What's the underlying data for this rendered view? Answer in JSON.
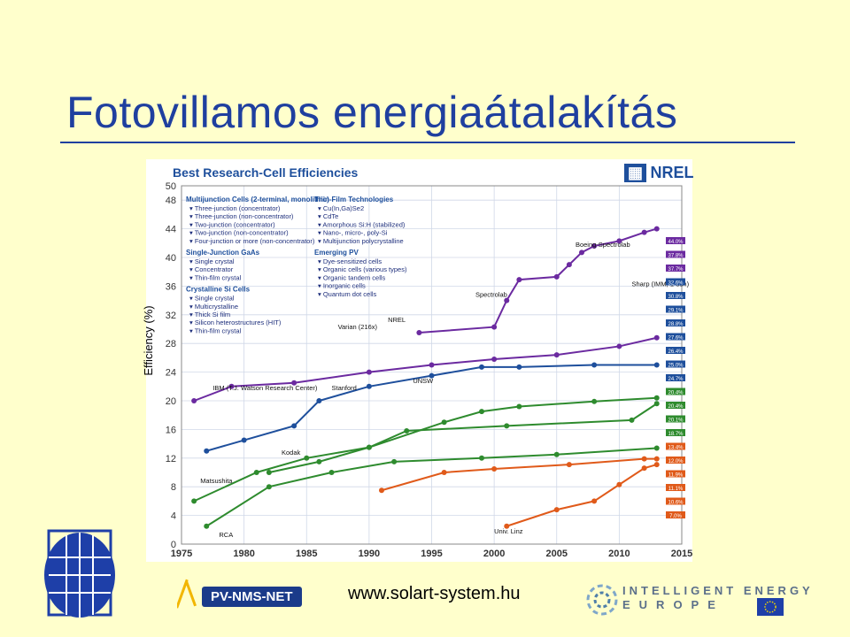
{
  "slide": {
    "title": "Fotovillamos energiaátalakítás",
    "footer_url": "www.solart-system.hu",
    "intelligent_energy_line1": "INTELLIGENT ENERGY",
    "intelligent_energy_line2": "EUROPE",
    "pv_logo_text": "PV-NMS-NET",
    "nrel_logo_text": "NREL",
    "colors": {
      "background": "#ffffcc",
      "title": "#1f3f9f",
      "nrel_blue": "#1e4f9c"
    }
  },
  "chart_data": {
    "type": "scatter",
    "title": "Best Research-Cell Efficiencies",
    "ylabel": "Efficiency (%)",
    "xlim": [
      1975,
      2015
    ],
    "ylim": [
      0,
      50
    ],
    "xticks": [
      "1975",
      "1980",
      "1985",
      "1990",
      "1995",
      "2000",
      "2005",
      "2010",
      "2015"
    ],
    "yticks": [
      "0",
      "4",
      "8",
      "12",
      "16",
      "20",
      "24",
      "28",
      "32",
      "36",
      "40",
      "44",
      "48",
      "50"
    ],
    "legend_groups": [
      {
        "heading": "Multijunction Cells (2-terminal, monolithic)",
        "items": [
          "Three-junction (concentrator)",
          "Three-junction (non-concentrator)",
          "Two-junction (concentrator)",
          "Two-junction (non-concentrator)",
          "Four-junction or more (non-concentrator)"
        ]
      },
      {
        "heading": "Single-Junction GaAs",
        "items": [
          "Single crystal",
          "Concentrator",
          "Thin-film crystal"
        ]
      },
      {
        "heading": "Crystalline Si Cells",
        "items": [
          "Single crystal",
          "Multicrystalline",
          "Thick Si film",
          "Silicon heterostructures (HIT)",
          "Thin-film crystal"
        ]
      },
      {
        "heading": "Thin-Film Technologies",
        "items": [
          "Cu(In,Ga)Se2",
          "CdTe",
          "Amorphous Si:H (stabilized)",
          "Nano-, micro-, poly-Si",
          "Multijunction polycrystalline"
        ]
      },
      {
        "heading": "Emerging PV",
        "items": [
          "Dye-sensitized cells",
          "Organic cells (various types)",
          "Organic tandem cells",
          "Inorganic cells",
          "Quantum dot cells"
        ]
      }
    ],
    "series": [
      {
        "name": "Three-junction (concentrator)",
        "color": "#6b2aa0",
        "x": [
          1994,
          2000,
          2001,
          2002,
          2005,
          2006,
          2007,
          2008,
          2010,
          2012,
          2013
        ],
        "y": [
          29.5,
          30.3,
          34.0,
          36.9,
          37.3,
          39.0,
          40.7,
          41.6,
          42.3,
          43.5,
          44.0
        ]
      },
      {
        "name": "Single-Junction GaAs",
        "color": "#6b2aa0",
        "x": [
          1976,
          1979,
          1984,
          1990,
          1995,
          2000,
          2005,
          2010,
          2013
        ],
        "y": [
          20.0,
          22.0,
          22.5,
          24.0,
          25.0,
          25.8,
          26.4,
          27.6,
          28.8
        ]
      },
      {
        "name": "Crystalline Si Cells",
        "color": "#1e4f9c",
        "x": [
          1977,
          1980,
          1984,
          1986,
          1990,
          1995,
          1999,
          2002,
          2008,
          2013
        ],
        "y": [
          13.0,
          14.5,
          16.5,
          20.0,
          22.0,
          23.5,
          24.7,
          24.7,
          25.0,
          25.0
        ]
      },
      {
        "name": "Cu(In,Ga)Se2",
        "color": "#2e8b2e",
        "x": [
          1976,
          1981,
          1985,
          1990,
          1996,
          1999,
          2002,
          2008,
          2013
        ],
        "y": [
          6.0,
          10.0,
          12.0,
          13.5,
          17.0,
          18.5,
          19.2,
          19.9,
          20.4
        ]
      },
      {
        "name": "CdTe",
        "color": "#2e8b2e",
        "x": [
          1982,
          1986,
          1990,
          1993,
          2001,
          2011,
          2013
        ],
        "y": [
          10.0,
          11.5,
          13.5,
          15.8,
          16.5,
          17.3,
          19.6
        ]
      },
      {
        "name": "Amorphous Si:H (stabilized)",
        "color": "#2e8b2e",
        "x": [
          1977,
          1982,
          1987,
          1992,
          1999,
          2005,
          2013
        ],
        "y": [
          2.5,
          8.0,
          10.0,
          11.5,
          12.0,
          12.5,
          13.4
        ]
      },
      {
        "name": "Organic cells",
        "color": "#e05a1a",
        "x": [
          2001,
          2005,
          2008,
          2010,
          2012,
          2013
        ],
        "y": [
          2.5,
          4.8,
          6.0,
          8.3,
          10.6,
          11.1
        ]
      },
      {
        "name": "Dye-sensitized cells",
        "color": "#e05a1a",
        "x": [
          1991,
          1996,
          2000,
          2006,
          2012,
          2013
        ],
        "y": [
          7.5,
          10.0,
          10.5,
          11.1,
          11.9,
          11.9
        ]
      }
    ],
    "record_labels": [
      "44.0%",
      "37.8%",
      "37.7%",
      "32.6%",
      "30.8%",
      "29.1%",
      "28.8%",
      "27.6%",
      "26.4%",
      "25.0%",
      "24.7%",
      "20.4%",
      "20.4%",
      "20.1%",
      "18.7%",
      "13.4%",
      "12.0%",
      "11.9%",
      "11.1%",
      "10.6%",
      "7.0%"
    ],
    "annotations": [
      {
        "text": "Spectrolab",
        "x": 1998.5,
        "y": 34.5
      },
      {
        "text": "NREL",
        "x": 1991.5,
        "y": 31
      },
      {
        "text": "Boeing-Spectrolab",
        "x": 2006.5,
        "y": 41.5
      },
      {
        "text": "Sharp (IMM, 1-sun)",
        "x": 2011,
        "y": 36
      },
      {
        "text": "Varian (216x)",
        "x": 1987.5,
        "y": 30
      },
      {
        "text": "IBM (T.J. Watson Research Center)",
        "x": 1977.5,
        "y": 21.5
      },
      {
        "text": "UNSW",
        "x": 1993.5,
        "y": 22.5
      },
      {
        "text": "Stanford",
        "x": 1987,
        "y": 21.5
      },
      {
        "text": "Kodak",
        "x": 1983,
        "y": 12.5
      },
      {
        "text": "RCA",
        "x": 1978,
        "y": 1
      },
      {
        "text": "Matsushita",
        "x": 1976.5,
        "y": 8.5
      },
      {
        "text": "Univ. Linz",
        "x": 2000,
        "y": 1.5
      }
    ]
  }
}
